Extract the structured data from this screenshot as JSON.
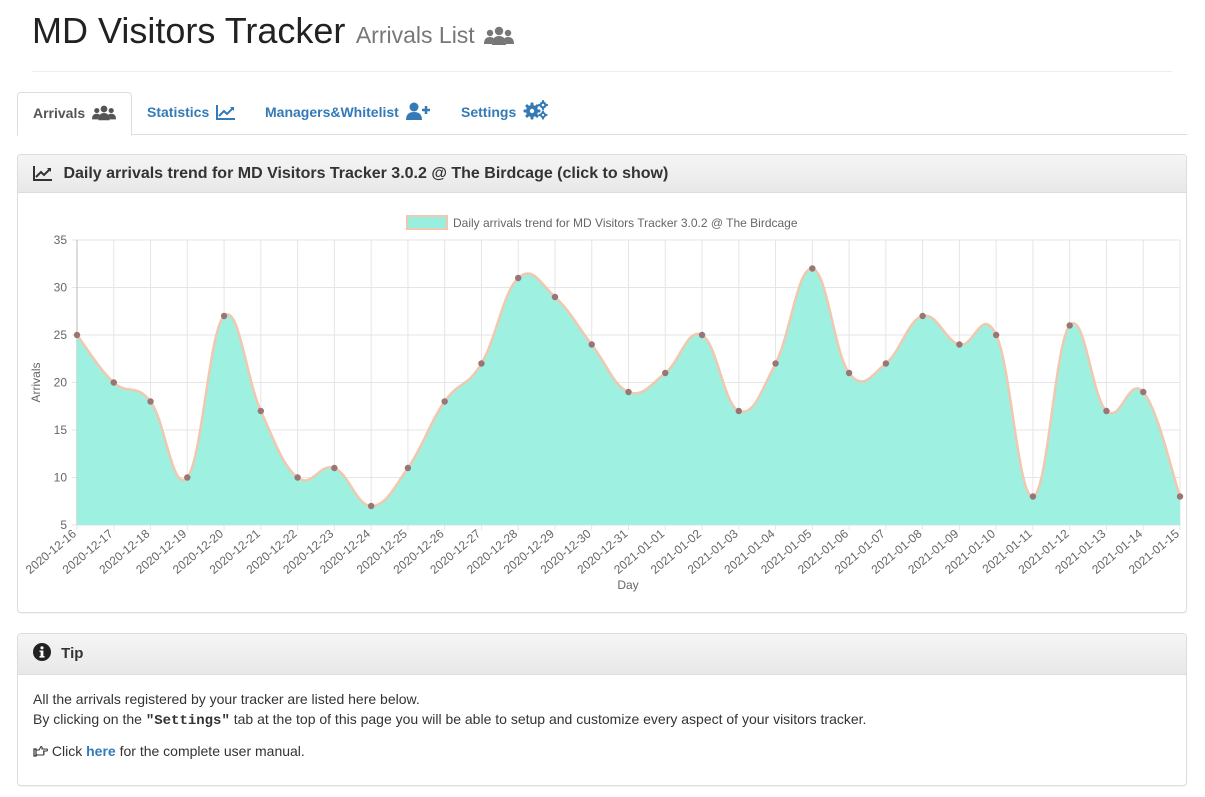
{
  "header": {
    "title": "MD Visitors Tracker",
    "subtitle": "Arrivals List"
  },
  "tabs": [
    {
      "label": "Arrivals",
      "icon": "users-icon",
      "active": true
    },
    {
      "label": "Statistics",
      "icon": "chart-line-icon",
      "active": false
    },
    {
      "label": "Managers&Whitelist",
      "icon": "user-plus-icon",
      "active": false
    },
    {
      "label": "Settings",
      "icon": "cogs-icon",
      "active": false
    }
  ],
  "chart_panel": {
    "heading": "Daily arrivals trend for MD Visitors Tracker 3.0.2 @ The Birdcage (click to show)"
  },
  "chart_data": {
    "type": "area",
    "legend": "Daily arrivals trend for MD Visitors Tracker 3.0.2 @ The Birdcage",
    "legend_position": "top",
    "xlabel": "Day",
    "ylabel": "Arrivals",
    "ylim": [
      5,
      35
    ],
    "yticks": [
      5,
      10,
      15,
      20,
      25,
      30,
      35
    ],
    "grid": true,
    "fill_color": "#99efdf",
    "line_color": "#f0c8b0",
    "point_color": "#9a7575",
    "categories": [
      "2020-12-16",
      "2020-12-17",
      "2020-12-18",
      "2020-12-19",
      "2020-12-20",
      "2020-12-21",
      "2020-12-22",
      "2020-12-23",
      "2020-12-24",
      "2020-12-25",
      "2020-12-26",
      "2020-12-27",
      "2020-12-28",
      "2020-12-29",
      "2020-12-30",
      "2020-12-31",
      "2021-01-01",
      "2021-01-02",
      "2021-01-03",
      "2021-01-04",
      "2021-01-05",
      "2021-01-06",
      "2021-01-07",
      "2021-01-08",
      "2021-01-09",
      "2021-01-10",
      "2021-01-11",
      "2021-01-12",
      "2021-01-13",
      "2021-01-14",
      "2021-01-15"
    ],
    "values": [
      25,
      20,
      18,
      10,
      27,
      17,
      10,
      11,
      7,
      11,
      18,
      22,
      31,
      29,
      24,
      19,
      21,
      25,
      17,
      22,
      32,
      21,
      22,
      27,
      24,
      25,
      8,
      26,
      17,
      19,
      8
    ]
  },
  "tip_panel": {
    "heading": "Tip",
    "line1": "All the arrivals registered by your tracker are listed here below.",
    "line2_pre": "By clicking on the ",
    "line2_bold": "\"Settings\"",
    "line2_post": " tab at the top of this page you will be able to setup and customize every aspect of your visitors tracker.",
    "manual_pre": "Click ",
    "manual_link": "here",
    "manual_post": " for the complete user manual."
  }
}
